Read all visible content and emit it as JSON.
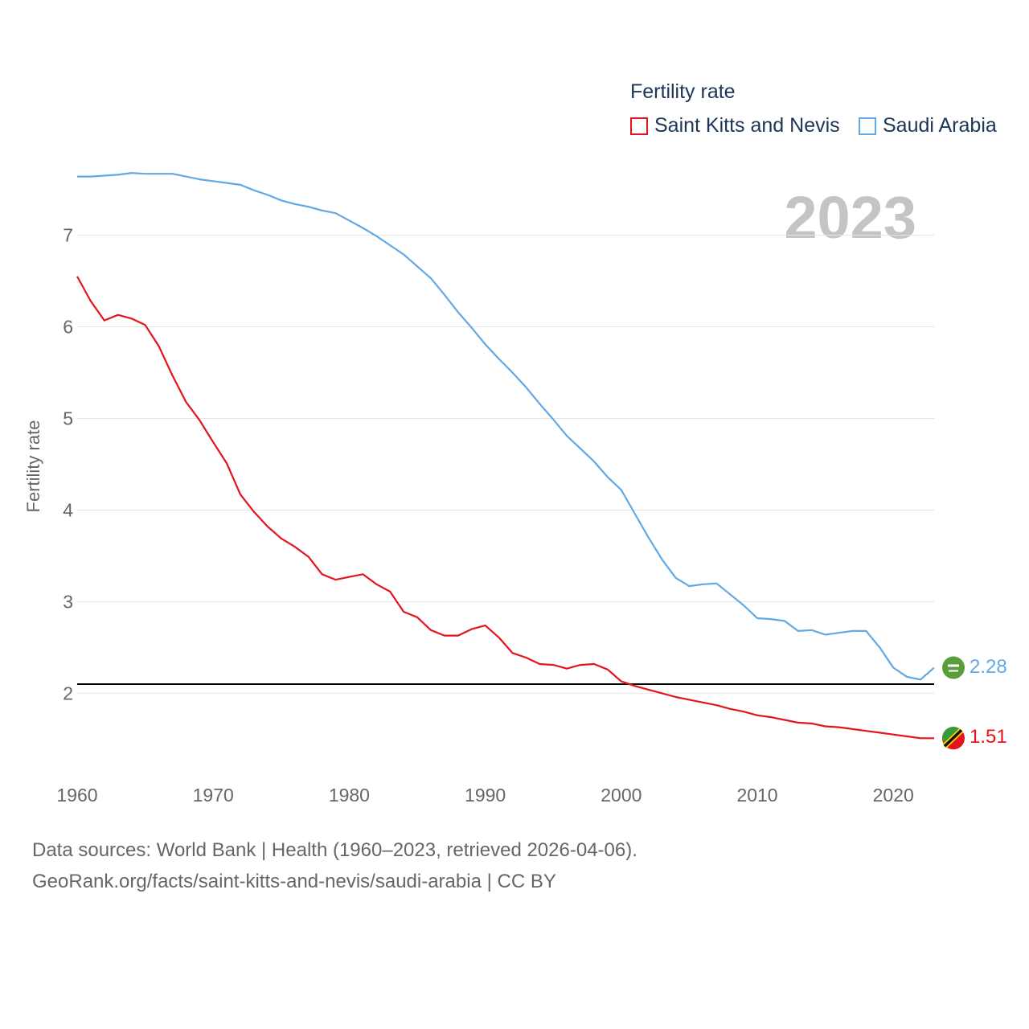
{
  "legend": {
    "title": "Fertility rate",
    "series": [
      {
        "label": "Saint Kitts and Nevis",
        "color": "#e4141c"
      },
      {
        "label": "Saudi Arabia",
        "color": "#62a8e5"
      }
    ]
  },
  "year_label": "2023",
  "footer": {
    "line1": "Data sources: World Bank | Health (1960–2023, retrieved 2026-04-06).",
    "line2": "GeoRank.org/facts/saint-kitts-and-nevis/saudi-arabia | CC BY"
  },
  "chart_data": {
    "type": "line",
    "title": "Fertility rate",
    "ylabel": "Fertility rate",
    "xlabel": "",
    "xlim": [
      1960,
      2023
    ],
    "ylim": [
      1.1,
      7.9
    ],
    "x_ticks": [
      1960,
      1970,
      1980,
      1990,
      2000,
      2010,
      2020
    ],
    "y_ticks": [
      2,
      3,
      4,
      5,
      6,
      7
    ],
    "reference_line": 2.1,
    "x": [
      1960,
      1961,
      1962,
      1963,
      1964,
      1965,
      1966,
      1967,
      1968,
      1969,
      1970,
      1971,
      1972,
      1973,
      1974,
      1975,
      1976,
      1977,
      1978,
      1979,
      1980,
      1981,
      1982,
      1983,
      1984,
      1985,
      1986,
      1987,
      1988,
      1989,
      1990,
      1991,
      1992,
      1993,
      1994,
      1995,
      1996,
      1997,
      1998,
      1999,
      2000,
      2001,
      2002,
      2003,
      2004,
      2005,
      2006,
      2007,
      2008,
      2009,
      2010,
      2011,
      2012,
      2013,
      2014,
      2015,
      2016,
      2017,
      2018,
      2019,
      2020,
      2021,
      2022,
      2023
    ],
    "series": [
      {
        "name": "Saint Kitts and Nevis",
        "color": "#e4141c",
        "end_label": "1.51",
        "values": [
          6.55,
          6.28,
          6.07,
          6.13,
          6.09,
          6.02,
          5.79,
          5.47,
          5.18,
          4.98,
          4.74,
          4.51,
          4.17,
          3.98,
          3.82,
          3.69,
          3.6,
          3.49,
          3.3,
          3.24,
          3.27,
          3.3,
          3.19,
          3.11,
          2.89,
          2.83,
          2.69,
          2.63,
          2.63,
          2.7,
          2.74,
          2.61,
          2.44,
          2.39,
          2.32,
          2.31,
          2.27,
          2.31,
          2.32,
          2.26,
          2.13,
          2.08,
          2.04,
          2.0,
          1.96,
          1.93,
          1.9,
          1.87,
          1.83,
          1.8,
          1.76,
          1.74,
          1.71,
          1.68,
          1.67,
          1.64,
          1.63,
          1.61,
          1.59,
          1.57,
          1.55,
          1.53,
          1.51,
          1.51
        ]
      },
      {
        "name": "Saudi Arabia",
        "color": "#62a8e5",
        "end_label": "2.28",
        "values": [
          7.64,
          7.64,
          7.65,
          7.66,
          7.68,
          7.67,
          7.67,
          7.67,
          7.64,
          7.61,
          7.59,
          7.57,
          7.55,
          7.49,
          7.44,
          7.38,
          7.34,
          7.31,
          7.27,
          7.24,
          7.16,
          7.08,
          6.99,
          6.89,
          6.79,
          6.66,
          6.53,
          6.35,
          6.16,
          5.99,
          5.81,
          5.65,
          5.5,
          5.34,
          5.16,
          4.99,
          4.81,
          4.67,
          4.53,
          4.36,
          4.22,
          3.96,
          3.7,
          3.46,
          3.26,
          3.17,
          3.19,
          3.2,
          3.08,
          2.96,
          2.82,
          2.81,
          2.79,
          2.68,
          2.69,
          2.64,
          2.66,
          2.68,
          2.68,
          2.5,
          2.28,
          2.18,
          2.15,
          2.28
        ]
      }
    ]
  }
}
